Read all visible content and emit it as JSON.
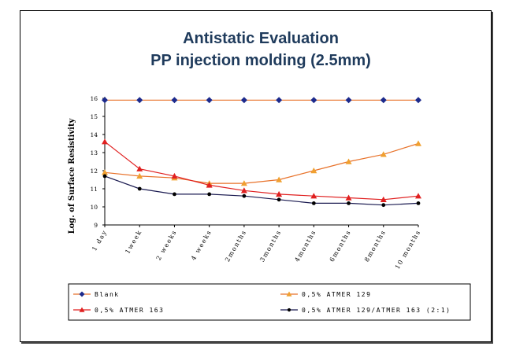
{
  "chart_data": {
    "type": "line",
    "title": "Antistatic Evaluation",
    "subtitle": "PP injection molding (2.5mm)",
    "xlabel": "",
    "ylabel": "Log. of Surface Resistivity",
    "categories": [
      "1 day",
      "1week",
      "2 weeks",
      "4 weeks",
      "2months",
      "3months",
      "4months",
      "6months",
      "8months",
      "10 months"
    ],
    "ylim": [
      9,
      16
    ],
    "yticks": [
      9,
      10,
      11,
      12,
      13,
      14,
      15,
      16
    ],
    "grid": false,
    "legend_position": "bottom",
    "series": [
      {
        "name": "Blank",
        "color": "#e8722a",
        "marker": "diamond",
        "marker_color": "#1c2a8c",
        "values": [
          15.9,
          15.9,
          15.9,
          15.9,
          15.9,
          15.9,
          15.9,
          15.9,
          15.9,
          15.9
        ]
      },
      {
        "name": "0,5% ATMER 129",
        "color": "#e8722a",
        "marker": "triangle",
        "marker_color": "#f0a030",
        "values": [
          11.9,
          11.7,
          11.6,
          11.3,
          11.3,
          11.5,
          12.0,
          12.5,
          12.9,
          13.5
        ]
      },
      {
        "name": "0,5% ATMER 163",
        "color": "#e02020",
        "marker": "triangle",
        "marker_color": "#e02020",
        "values": [
          13.6,
          12.1,
          11.7,
          11.2,
          10.9,
          10.7,
          10.6,
          10.5,
          10.4,
          10.6
        ]
      },
      {
        "name": "0,5% ATMER 129/ATMER 163 (2:1)",
        "color": "#1a1a50",
        "marker": "circle",
        "marker_color": "#000000",
        "values": [
          11.7,
          11.0,
          10.7,
          10.7,
          10.6,
          10.4,
          10.2,
          10.2,
          10.1,
          10.2
        ]
      }
    ]
  }
}
